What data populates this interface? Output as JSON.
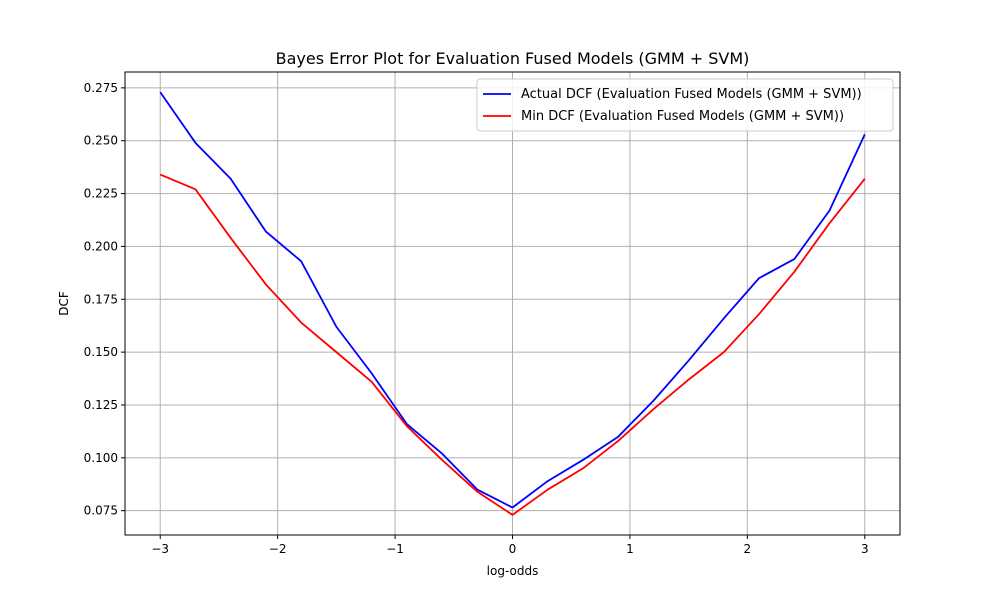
{
  "chart_data": {
    "type": "line",
    "title": "Bayes Error Plot for Evaluation Fused Models (GMM + SVM)",
    "xlabel": "log-odds",
    "ylabel": "DCF",
    "xlim": [
      -3.3,
      3.3
    ],
    "ylim": [
      0.0635,
      0.2825
    ],
    "xticks": [
      -3,
      -2,
      -1,
      0,
      1,
      2,
      3
    ],
    "xtick_labels": [
      "−3",
      "−2",
      "−1",
      "0",
      "1",
      "2",
      "3"
    ],
    "yticks": [
      0.075,
      0.1,
      0.125,
      0.15,
      0.175,
      0.2,
      0.225,
      0.25,
      0.275
    ],
    "ytick_labels": [
      "0.075",
      "0.100",
      "0.125",
      "0.150",
      "0.175",
      "0.200",
      "0.225",
      "0.250",
      "0.275"
    ],
    "grid": true,
    "legend_position": "top-right",
    "x": [
      -3.0,
      -2.7,
      -2.4,
      -2.1,
      -1.8,
      -1.5,
      -1.2,
      -0.9,
      -0.6,
      -0.3,
      0.0,
      0.3,
      0.6,
      0.9,
      1.2,
      1.5,
      1.8,
      2.1,
      2.4,
      2.7,
      3.0
    ],
    "series": [
      {
        "name": "Actual DCF (Evaluation Fused Models (GMM + SVM))",
        "color": "#0000ff",
        "values": [
          0.273,
          0.249,
          0.232,
          0.207,
          0.193,
          0.162,
          0.14,
          0.116,
          0.102,
          0.085,
          0.0765,
          0.089,
          0.099,
          0.11,
          0.127,
          0.146,
          0.166,
          0.185,
          0.194,
          0.217,
          0.253
        ]
      },
      {
        "name": "Min DCF (Evaluation Fused Models (GMM + SVM))",
        "color": "#ff0000",
        "values": [
          0.234,
          0.227,
          0.204,
          0.182,
          0.164,
          0.15,
          0.136,
          0.115,
          0.099,
          0.084,
          0.073,
          0.085,
          0.095,
          0.108,
          0.123,
          0.137,
          0.15,
          0.168,
          0.188,
          0.211,
          0.232
        ]
      }
    ]
  }
}
